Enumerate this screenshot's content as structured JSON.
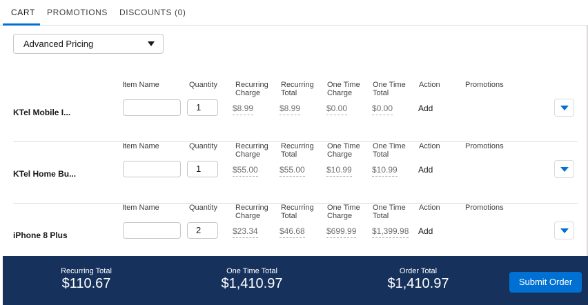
{
  "tabs": [
    {
      "label": "CART"
    },
    {
      "label": "PROMOTIONS"
    },
    {
      "label": "DISCOUNTS (0)"
    }
  ],
  "pricing_select": {
    "value": "Advanced Pricing"
  },
  "columns": {
    "item_name": "Item Name",
    "quantity": "Quantity",
    "recurring_charge_1": "Recurring",
    "recurring_charge_2": "Charge",
    "recurring_total_1": "Recurring",
    "recurring_total_2": "Total",
    "one_time_charge_1": "One Time",
    "one_time_charge_2": "Charge",
    "one_time_total_1": "One Time",
    "one_time_total_2": "Total",
    "action": "Action",
    "promotions": "Promotions"
  },
  "rows": [
    {
      "name": "KTel Mobile I...",
      "quantity": "1",
      "recurring_charge": "$8.99",
      "recurring_total": "$8.99",
      "one_time_charge": "$0.00",
      "one_time_total": "$0.00",
      "action": "Add"
    },
    {
      "name": "KTel Home Bu...",
      "quantity": "1",
      "recurring_charge": "$55.00",
      "recurring_total": "$55.00",
      "one_time_charge": "$10.99",
      "one_time_total": "$10.99",
      "action": "Add"
    },
    {
      "name": "iPhone 8 Plus",
      "quantity": "2",
      "recurring_charge": "$23.34",
      "recurring_total": "$46.68",
      "one_time_charge": "$699.99",
      "one_time_total": "$1,399.98",
      "action": "Add"
    }
  ],
  "footer": {
    "recurring_total_label": "Recurring Total",
    "recurring_total_value": "$110.67",
    "one_time_total_label": "One Time Total",
    "one_time_total_value": "$1,410.97",
    "order_total_label": "Order Total",
    "order_total_value": "$1,410.97",
    "submit_label": "Submit Order"
  },
  "colors": {
    "accent": "#0070d2",
    "footer_bg": "#16325c"
  }
}
